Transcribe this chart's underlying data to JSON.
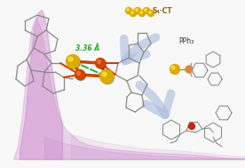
{
  "bg_color": "#f8f8f8",
  "uv_blob_color": "#cc88cc",
  "arrow_color": "#aabbdd",
  "fe_color": "#cc4400",
  "s_color": "#ddaa00",
  "s_dark_color": "#aa7700",
  "distance_text": "3.36 Å",
  "distance_color": "#22aa22",
  "PPh3_text": "PPh₃",
  "s4ct_text": "S₄·CT",
  "s4ct_color": "#886600",
  "stick_color": "#999999",
  "fe_bond_color": "#cc4400",
  "oxygen_color": "#cc2200",
  "phosphorus_color": "#dd8833",
  "text_color": "#333333"
}
